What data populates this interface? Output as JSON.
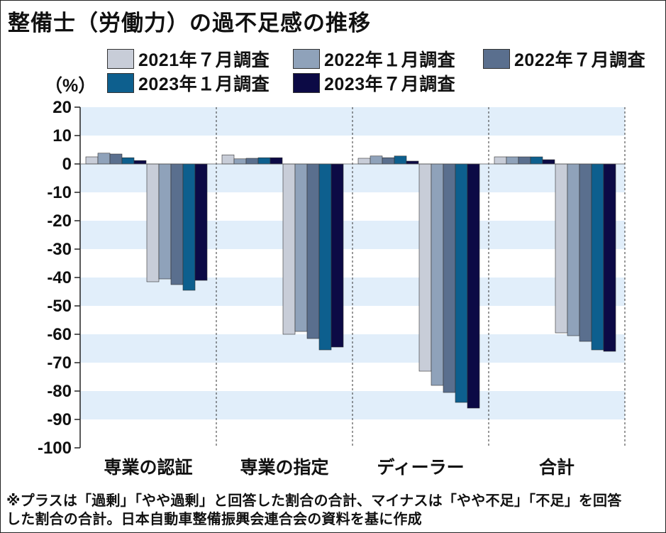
{
  "chart_data": {
    "type": "bar",
    "title": "整備士（労働力）の過不足感の推移",
    "ylabel": "（%）",
    "ylim": [
      -100,
      20
    ],
    "yticks": [
      "20",
      "10",
      "0",
      "-10",
      "-20",
      "-30",
      "-40",
      "-50",
      "-60",
      "-70",
      "-80",
      "-90",
      "-100"
    ],
    "grid": "alternating horizontal bands",
    "legend_position": "top",
    "categories": [
      "専業の認証",
      "専業の指定",
      "ディーラー",
      "合計"
    ],
    "series": [
      {
        "name": "2021年７月調査",
        "color": "#c8cdd8",
        "positive": [
          2.5,
          3.2,
          2.0,
          2.5
        ],
        "negative": [
          -41.5,
          -60.0,
          -73.0,
          -59.5
        ]
      },
      {
        "name": "2022年１月調査",
        "color": "#8fa2ba",
        "positive": [
          3.8,
          1.8,
          2.8,
          2.5
        ],
        "negative": [
          -40.5,
          -59.0,
          -78.0,
          -60.5
        ]
      },
      {
        "name": "2022年７月調査",
        "color": "#5a6f8e",
        "positive": [
          3.5,
          2.0,
          2.2,
          2.5
        ],
        "negative": [
          -42.5,
          -61.5,
          -80.5,
          -62.5
        ]
      },
      {
        "name": "2023年１月調査",
        "color": "#0d5f8e",
        "positive": [
          2.2,
          2.2,
          2.8,
          2.5
        ],
        "negative": [
          -44.5,
          -65.5,
          -84.0,
          -65.5
        ]
      },
      {
        "name": "2023年７月調査",
        "color": "#0c0a45",
        "positive": [
          1.2,
          2.2,
          1.0,
          1.5
        ],
        "negative": [
          -41.0,
          -64.5,
          -86.0,
          -66.0
        ]
      }
    ]
  },
  "footnote": {
    "line1": "※プラスは「過剰」「やや過剰」と回答した割合の合計、マイナスは「やや不足」「不足」を回答",
    "line2": "した割合の合計。日本自動車整備振興会連合会の資料を基に作成"
  }
}
